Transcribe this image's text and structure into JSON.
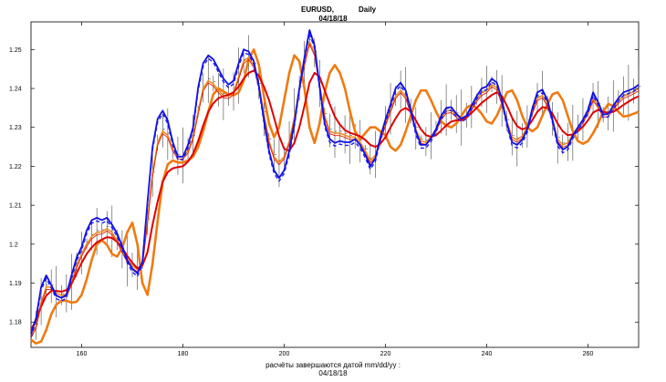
{
  "chart_data": {
    "type": "line",
    "title_symbol": "EURUSD,",
    "title_timeframe": "Daily",
    "title_date": "04/18/18",
    "footer_line1": "расчёты завершаются датой  mm/dd/yy :",
    "footer_line2": "04/18/18",
    "xlim": [
      150,
      270
    ],
    "ylim": [
      1.1735,
      1.2571
    ],
    "x_ticks": [
      160,
      180,
      200,
      220,
      240,
      260
    ],
    "y_ticks": [
      1.18,
      1.19,
      1.2,
      1.21,
      1.22,
      1.23,
      1.24,
      1.25
    ],
    "y_tick_labels": [
      "1.18",
      "1.19",
      "1.2",
      "1.21",
      "1.22",
      "1.23",
      "1.24",
      "1.25"
    ],
    "grid": false,
    "colors": {
      "price_bars": "#000000",
      "dashed_series": "#1a1aff",
      "blue_series": "#1010e0",
      "red_series": "#e00000",
      "thin_red_series": "#e02000",
      "orange_series": "#f07a10",
      "orange_fast_series": "#f08a20"
    },
    "series": [
      {
        "key": "blue",
        "x": [
          150,
          151,
          152,
          153,
          154,
          155,
          156,
          157,
          158,
          159,
          160,
          161,
          162,
          163,
          164,
          165,
          166,
          167,
          168,
          169,
          170,
          171,
          172,
          173,
          174,
          175,
          176,
          177,
          178,
          179,
          180,
          181,
          182,
          183,
          184,
          185,
          186,
          187,
          188,
          189,
          190,
          191,
          192,
          193,
          194,
          195,
          196,
          197,
          198,
          199,
          200,
          201,
          202,
          203,
          204,
          205,
          206,
          207,
          208,
          209,
          210,
          211,
          212,
          213,
          214,
          215,
          216,
          217,
          218,
          219,
          220,
          221,
          222,
          223,
          224,
          225,
          226,
          227,
          228,
          229,
          230,
          231,
          232,
          233,
          234,
          235,
          236,
          237,
          238,
          239,
          240,
          241,
          242,
          243,
          244,
          245,
          246,
          247,
          248,
          249,
          250,
          251,
          252,
          253,
          254,
          255,
          256,
          257,
          258,
          259,
          260,
          261,
          262,
          263,
          264,
          265,
          266,
          267,
          268,
          269,
          270
        ],
        "y": [
          1.177,
          1.181,
          1.189,
          1.192,
          1.1895,
          1.1868,
          1.1862,
          1.187,
          1.192,
          1.1965,
          1.1993,
          1.2035,
          1.2062,
          1.2068,
          1.2062,
          1.2068,
          1.205,
          1.2028,
          1.1995,
          1.196,
          1.1937,
          1.1925,
          1.1955,
          1.211,
          1.225,
          1.2322,
          1.2343,
          1.2318,
          1.2262,
          1.2225,
          1.2225,
          1.2255,
          1.23,
          1.2403,
          1.2465,
          1.2485,
          1.2475,
          1.245,
          1.2425,
          1.241,
          1.242,
          1.2465,
          1.25,
          1.2495,
          1.247,
          1.2405,
          1.232,
          1.224,
          1.219,
          1.217,
          1.219,
          1.224,
          1.231,
          1.24,
          1.248,
          1.255,
          1.251,
          1.2405,
          1.231,
          1.227,
          1.226,
          1.2265,
          1.2262,
          1.2262,
          1.227,
          1.2255,
          1.223,
          1.22,
          1.222,
          1.2275,
          1.232,
          1.236,
          1.24,
          1.2415,
          1.2395,
          1.2345,
          1.229,
          1.2255,
          1.2255,
          1.2272,
          1.2296,
          1.233,
          1.235,
          1.2352,
          1.2335,
          1.2322,
          1.233,
          1.2355,
          1.238,
          1.24,
          1.2405,
          1.2425,
          1.2415,
          1.2372,
          1.231,
          1.2262,
          1.2255,
          1.2268,
          1.2295,
          1.2348,
          1.239,
          1.2397,
          1.237,
          1.232,
          1.226,
          1.2243,
          1.225,
          1.228,
          1.23,
          1.232,
          1.2345,
          1.239,
          1.2365,
          1.2333,
          1.2335,
          1.2356,
          1.2375,
          1.239,
          1.2395,
          1.24,
          1.241
        ]
      },
      {
        "key": "red",
        "x": [
          150,
          151,
          152,
          153,
          154,
          155,
          156,
          157,
          158,
          159,
          160,
          161,
          162,
          163,
          164,
          165,
          166,
          167,
          168,
          169,
          170,
          171,
          172,
          173,
          174,
          175,
          176,
          177,
          178,
          179,
          180,
          181,
          182,
          183,
          184,
          185,
          186,
          187,
          188,
          189,
          190,
          191,
          192,
          193,
          194,
          195,
          196,
          197,
          198,
          199,
          200,
          201,
          202,
          203,
          204,
          205,
          206,
          207,
          208,
          209,
          210,
          211,
          212,
          213,
          214,
          215,
          216,
          217,
          218,
          219,
          220,
          221,
          222,
          223,
          224,
          225,
          226,
          227,
          228,
          229,
          230,
          231,
          232,
          233,
          234,
          235,
          236,
          237,
          238,
          239,
          240,
          241,
          242,
          243,
          244,
          245,
          246,
          247,
          248,
          249,
          250,
          251,
          252,
          253,
          254,
          255,
          256,
          257,
          258,
          259,
          260,
          261,
          262,
          263,
          264,
          265,
          266,
          267,
          268,
          269,
          270
        ],
        "y": [
          1.178,
          1.1805,
          1.184,
          1.1868,
          1.188,
          1.188,
          1.1878,
          1.1882,
          1.1898,
          1.1925,
          1.1952,
          1.1975,
          1.1992,
          1.2005,
          1.2012,
          1.2018,
          1.2016,
          1.2006,
          1.199,
          1.197,
          1.1952,
          1.1938,
          1.1945,
          1.198,
          1.205,
          1.211,
          1.216,
          1.2185,
          1.2195,
          1.2198,
          1.22,
          1.2212,
          1.2232,
          1.2265,
          1.2305,
          1.234,
          1.2362,
          1.2375,
          1.238,
          1.2384,
          1.239,
          1.2405,
          1.2425,
          1.244,
          1.2446,
          1.2432,
          1.2405,
          1.237,
          1.2325,
          1.2278,
          1.2245,
          1.224,
          1.226,
          1.23,
          1.2355,
          1.2415,
          1.244,
          1.243,
          1.2395,
          1.236,
          1.2328,
          1.2307,
          1.2293,
          1.2286,
          1.2282,
          1.2277,
          1.2268,
          1.2255,
          1.225,
          1.2258,
          1.2275,
          1.23,
          1.2323,
          1.2343,
          1.235,
          1.234,
          1.2318,
          1.2295,
          1.228,
          1.2276,
          1.228,
          1.2292,
          1.2305,
          1.2315,
          1.2318,
          1.232,
          1.2325,
          1.2337,
          1.235,
          1.2363,
          1.2373,
          1.2383,
          1.239,
          1.238,
          1.2355,
          1.2325,
          1.2303,
          1.2295,
          1.23,
          1.2318,
          1.234,
          1.2352,
          1.235,
          1.2335,
          1.231,
          1.229,
          1.228,
          1.2282,
          1.229,
          1.2302,
          1.2318,
          1.2338,
          1.2345,
          1.234,
          1.2338,
          1.234,
          1.2348,
          1.2358,
          1.2366,
          1.2374,
          1.238
        ]
      },
      {
        "key": "orange",
        "x": [
          150,
          151,
          152,
          153,
          154,
          155,
          156,
          157,
          158,
          159,
          160,
          161,
          162,
          163,
          164,
          165,
          166,
          167,
          168,
          169,
          170,
          171,
          172,
          173,
          174,
          175,
          176,
          177,
          178,
          179,
          180,
          181,
          182,
          183,
          184,
          185,
          186,
          187,
          188,
          189,
          190,
          191,
          192,
          193,
          194,
          195,
          196,
          197,
          198,
          199,
          200,
          201,
          202,
          203,
          204,
          205,
          206,
          207,
          208,
          209,
          210,
          211,
          212,
          213,
          214,
          215,
          216,
          217,
          218,
          219,
          220,
          221,
          222,
          223,
          224,
          225,
          226,
          227,
          228,
          229,
          230,
          231,
          232,
          233,
          234,
          235,
          236,
          237,
          238,
          239,
          240,
          241,
          242,
          243,
          244,
          245,
          246,
          247,
          248,
          249,
          250,
          251,
          252,
          253,
          254,
          255,
          256,
          257,
          258,
          259,
          260,
          261,
          262,
          263,
          264,
          265,
          266,
          267,
          268,
          269,
          270
        ],
        "y": [
          1.1755,
          1.1745,
          1.175,
          1.178,
          1.182,
          1.1845,
          1.1855,
          1.1855,
          1.185,
          1.1852,
          1.187,
          1.191,
          1.196,
          1.2,
          1.201,
          1.1998,
          1.1975,
          1.1968,
          1.199,
          1.203,
          1.2055,
          1.2,
          1.19,
          1.187,
          1.195,
          1.206,
          1.216,
          1.2205,
          1.2215,
          1.221,
          1.221,
          1.2215,
          1.2225,
          1.225,
          1.229,
          1.234,
          1.2385,
          1.24,
          1.2392,
          1.2385,
          1.2382,
          1.239,
          1.242,
          1.2475,
          1.25,
          1.246,
          1.238,
          1.231,
          1.2275,
          1.23,
          1.237,
          1.244,
          1.2485,
          1.247,
          1.24,
          1.23,
          1.226,
          1.231,
          1.239,
          1.244,
          1.246,
          1.244,
          1.24,
          1.234,
          1.229,
          1.227,
          1.2285,
          1.23,
          1.23,
          1.229,
          1.228,
          1.225,
          1.224,
          1.2255,
          1.229,
          1.233,
          1.237,
          1.2395,
          1.2395,
          1.237,
          1.234,
          1.2315,
          1.2305,
          1.23,
          1.231,
          1.233,
          1.235,
          1.2358,
          1.235,
          1.2335,
          1.2315,
          1.231,
          1.233,
          1.236,
          1.239,
          1.2395,
          1.237,
          1.233,
          1.23,
          1.229,
          1.23,
          1.233,
          1.236,
          1.2385,
          1.239,
          1.237,
          1.233,
          1.229,
          1.2265,
          1.2258,
          1.2265,
          1.2285,
          1.231,
          1.234,
          1.236,
          1.2355,
          1.234,
          1.2328,
          1.233,
          1.2335,
          1.234
        ]
      },
      {
        "key": "orange_fast",
        "x": [
          150,
          151,
          152,
          153,
          154,
          155,
          156,
          157,
          158,
          159,
          160,
          161,
          162,
          163,
          164,
          165,
          166,
          167,
          168,
          169,
          170,
          171,
          172,
          173,
          174,
          175,
          176,
          177,
          178,
          179,
          180,
          181,
          182,
          183,
          184,
          185,
          186,
          187,
          188,
          189,
          190,
          191,
          192,
          193,
          194,
          195,
          196,
          197,
          198,
          199,
          200,
          201,
          202,
          203,
          204,
          205,
          206,
          207,
          208,
          209,
          210,
          211,
          212,
          213,
          214,
          215,
          216,
          217,
          218,
          219,
          220,
          221,
          222,
          223,
          224,
          225,
          226,
          227,
          228,
          229,
          230,
          231,
          232,
          233,
          234,
          235,
          236,
          237,
          238,
          239,
          240,
          241,
          242,
          243,
          244,
          245,
          246,
          247,
          248,
          249,
          250,
          251,
          252,
          253,
          254,
          255,
          256,
          257,
          258,
          259,
          260,
          261,
          262,
          263,
          264,
          265,
          266,
          267,
          268,
          269,
          270
        ],
        "y": [
          1.1765,
          1.179,
          1.185,
          1.189,
          1.189,
          1.1875,
          1.1868,
          1.1872,
          1.19,
          1.1945,
          1.1975,
          1.2,
          1.202,
          1.203,
          1.2032,
          1.204,
          1.203,
          1.201,
          1.1985,
          1.196,
          1.1945,
          1.1935,
          1.195,
          1.206,
          1.218,
          1.226,
          1.229,
          1.228,
          1.2245,
          1.2225,
          1.2225,
          1.224,
          1.2275,
          1.234,
          1.24,
          1.242,
          1.2412,
          1.2395,
          1.2382,
          1.238,
          1.239,
          1.243,
          1.247,
          1.248,
          1.246,
          1.2408,
          1.2335,
          1.2265,
          1.2225,
          1.221,
          1.2225,
          1.2265,
          1.2325,
          1.24,
          1.2465,
          1.252,
          1.249,
          1.241,
          1.233,
          1.229,
          1.2285,
          1.2285,
          1.228,
          1.2275,
          1.2275,
          1.2262,
          1.224,
          1.2215,
          1.2228,
          1.227,
          1.231,
          1.2345,
          1.238,
          1.2395,
          1.238,
          1.234,
          1.2295,
          1.2265,
          1.2262,
          1.2276,
          1.2296,
          1.2325,
          1.2342,
          1.2344,
          1.2332,
          1.2322,
          1.233,
          1.235,
          1.2372,
          1.2388,
          1.2395,
          1.241,
          1.2402,
          1.2365,
          1.2315,
          1.2275,
          1.2268,
          1.2278,
          1.23,
          1.234,
          1.2375,
          1.2382,
          1.236,
          1.232,
          1.227,
          1.2255,
          1.226,
          1.2283,
          1.23,
          1.2318,
          1.234,
          1.2375,
          1.2356,
          1.2332,
          1.2334,
          1.2352,
          1.2368,
          1.238,
          1.2386,
          1.2392,
          1.24
        ]
      }
    ]
  }
}
